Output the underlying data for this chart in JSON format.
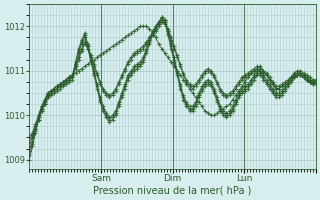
{
  "bg_color": "#d8eeee",
  "grid_color": "#b0cece",
  "line_color": "#2a5e2a",
  "marker_color": "#2a5e2a",
  "ylabel": "Pression niveau de la mer( hPa )",
  "yticks": [
    1009,
    1010,
    1011,
    1012
  ],
  "ylim": [
    1008.8,
    1012.5
  ],
  "xlim": [
    0,
    96
  ],
  "xtick_positions": [
    24,
    48,
    72,
    96
  ],
  "xtick_labels": [
    "Sam",
    "Dim",
    "Lun",
    ""
  ],
  "series": [
    [
      1009.3,
      1009.5,
      1009.7,
      1009.9,
      1010.1,
      1010.25,
      1010.4,
      1010.5,
      1010.6,
      1010.65,
      1010.7,
      1010.75,
      1010.8,
      1010.85,
      1010.9,
      1010.95,
      1011.0,
      1011.05,
      1011.1,
      1011.15,
      1011.2,
      1011.25,
      1011.3,
      1011.35,
      1011.4,
      1011.45,
      1011.5,
      1011.55,
      1011.6,
      1011.65,
      1011.7,
      1011.75,
      1011.8,
      1011.85,
      1011.9,
      1011.95,
      1012.0,
      1012.0,
      1012.0,
      1011.95,
      1011.85,
      1011.75,
      1011.6,
      1011.5,
      1011.4,
      1011.3,
      1011.2,
      1011.1,
      1011.0,
      1010.9,
      1010.8,
      1010.7,
      1010.6,
      1010.5,
      1010.4,
      1010.3,
      1010.2,
      1010.1,
      1010.05,
      1010.0,
      1010.0,
      1010.05,
      1010.1,
      1010.15,
      1010.2,
      1010.25,
      1010.35,
      1010.45,
      1010.55,
      1010.65,
      1010.75,
      1010.85,
      1010.95,
      1011.0,
      1011.05,
      1011.1,
      1011.0,
      1010.9,
      1010.8,
      1010.7,
      1010.6,
      1010.6,
      1010.65,
      1010.7,
      1010.75,
      1010.8,
      1010.85,
      1010.9,
      1010.9,
      1010.85,
      1010.8,
      1010.75,
      1010.7,
      1010.7
    ],
    [
      1009.2,
      1009.4,
      1009.7,
      1010.0,
      1010.2,
      1010.35,
      1010.5,
      1010.55,
      1010.6,
      1010.65,
      1010.7,
      1010.75,
      1010.8,
      1010.85,
      1010.9,
      1011.2,
      1011.5,
      1011.7,
      1011.85,
      1011.6,
      1011.3,
      1011.0,
      1010.7,
      1010.4,
      1010.2,
      1010.05,
      1009.95,
      1010.0,
      1010.1,
      1010.3,
      1010.5,
      1010.7,
      1010.9,
      1011.0,
      1011.1,
      1011.15,
      1011.2,
      1011.3,
      1011.5,
      1011.7,
      1011.9,
      1012.0,
      1012.1,
      1012.2,
      1012.15,
      1011.9,
      1011.6,
      1011.3,
      1011.0,
      1010.7,
      1010.45,
      1010.3,
      1010.2,
      1010.2,
      1010.3,
      1010.5,
      1010.65,
      1010.75,
      1010.8,
      1010.75,
      1010.6,
      1010.4,
      1010.2,
      1010.1,
      1010.05,
      1010.1,
      1010.2,
      1010.35,
      1010.5,
      1010.6,
      1010.65,
      1010.7,
      1010.8,
      1010.9,
      1011.0,
      1011.0,
      1010.9,
      1010.8,
      1010.7,
      1010.6,
      1010.5,
      1010.5,
      1010.55,
      1010.65,
      1010.75,
      1010.85,
      1010.95,
      1011.0,
      1011.0,
      1010.95,
      1010.9,
      1010.85,
      1010.8,
      1010.8
    ],
    [
      1009.1,
      1009.35,
      1009.65,
      1009.95,
      1010.15,
      1010.3,
      1010.45,
      1010.5,
      1010.55,
      1010.6,
      1010.65,
      1010.7,
      1010.75,
      1010.8,
      1010.85,
      1011.15,
      1011.45,
      1011.65,
      1011.8,
      1011.55,
      1011.25,
      1010.95,
      1010.65,
      1010.35,
      1010.15,
      1010.0,
      1009.9,
      1009.95,
      1010.05,
      1010.25,
      1010.45,
      1010.65,
      1010.85,
      1010.95,
      1011.05,
      1011.1,
      1011.15,
      1011.25,
      1011.45,
      1011.65,
      1011.85,
      1012.0,
      1012.1,
      1012.2,
      1012.15,
      1011.85,
      1011.55,
      1011.25,
      1010.95,
      1010.65,
      1010.4,
      1010.25,
      1010.15,
      1010.15,
      1010.25,
      1010.45,
      1010.6,
      1010.7,
      1010.75,
      1010.7,
      1010.55,
      1010.35,
      1010.15,
      1010.05,
      1010.0,
      1010.05,
      1010.15,
      1010.3,
      1010.45,
      1010.55,
      1010.6,
      1010.65,
      1010.75,
      1010.85,
      1010.95,
      1010.95,
      1010.85,
      1010.75,
      1010.65,
      1010.55,
      1010.45,
      1010.45,
      1010.5,
      1010.6,
      1010.7,
      1010.8,
      1010.9,
      1010.95,
      1010.95,
      1010.9,
      1010.85,
      1010.8,
      1010.75,
      1010.75
    ],
    [
      1009.0,
      1009.3,
      1009.6,
      1009.9,
      1010.1,
      1010.25,
      1010.4,
      1010.45,
      1010.5,
      1010.55,
      1010.6,
      1010.65,
      1010.7,
      1010.75,
      1010.8,
      1011.1,
      1011.4,
      1011.6,
      1011.75,
      1011.5,
      1011.2,
      1010.9,
      1010.6,
      1010.3,
      1010.1,
      1009.95,
      1009.85,
      1009.9,
      1010.0,
      1010.2,
      1010.4,
      1010.6,
      1010.8,
      1010.9,
      1011.0,
      1011.05,
      1011.1,
      1011.2,
      1011.4,
      1011.6,
      1011.8,
      1011.95,
      1012.05,
      1012.15,
      1012.1,
      1011.8,
      1011.5,
      1011.2,
      1010.9,
      1010.6,
      1010.35,
      1010.2,
      1010.1,
      1010.1,
      1010.2,
      1010.4,
      1010.55,
      1010.65,
      1010.7,
      1010.65,
      1010.5,
      1010.3,
      1010.1,
      1010.0,
      1009.95,
      1010.0,
      1010.1,
      1010.25,
      1010.4,
      1010.5,
      1010.55,
      1010.6,
      1010.7,
      1010.8,
      1010.9,
      1010.9,
      1010.8,
      1010.7,
      1010.6,
      1010.5,
      1010.4,
      1010.4,
      1010.45,
      1010.55,
      1010.65,
      1010.75,
      1010.85,
      1010.9,
      1010.9,
      1010.85,
      1010.8,
      1010.75,
      1010.7,
      1010.7
    ],
    [
      1009.5,
      1009.6,
      1009.8,
      1010.0,
      1010.2,
      1010.35,
      1010.5,
      1010.55,
      1010.6,
      1010.65,
      1010.7,
      1010.75,
      1010.8,
      1010.85,
      1010.9,
      1011.1,
      1011.3,
      1011.5,
      1011.65,
      1011.55,
      1011.35,
      1011.15,
      1010.95,
      1010.75,
      1010.6,
      1010.5,
      1010.45,
      1010.5,
      1010.6,
      1010.75,
      1010.9,
      1011.05,
      1011.2,
      1011.3,
      1011.4,
      1011.45,
      1011.5,
      1011.55,
      1011.65,
      1011.75,
      1011.85,
      1011.95,
      1012.05,
      1012.15,
      1012.1,
      1011.95,
      1011.75,
      1011.55,
      1011.35,
      1011.15,
      1010.95,
      1010.8,
      1010.7,
      1010.65,
      1010.7,
      1010.8,
      1010.9,
      1011.0,
      1011.05,
      1011.0,
      1010.9,
      1010.75,
      1010.6,
      1010.5,
      1010.45,
      1010.5,
      1010.55,
      1010.65,
      1010.75,
      1010.85,
      1010.9,
      1010.95,
      1011.0,
      1011.05,
      1011.1,
      1011.05,
      1011.0,
      1010.95,
      1010.85,
      1010.75,
      1010.65,
      1010.65,
      1010.7,
      1010.75,
      1010.8,
      1010.85,
      1010.9,
      1010.95,
      1010.95,
      1010.9,
      1010.85,
      1010.8,
      1010.75,
      1010.75
    ],
    [
      1009.4,
      1009.55,
      1009.75,
      1009.95,
      1010.15,
      1010.3,
      1010.45,
      1010.5,
      1010.55,
      1010.6,
      1010.65,
      1010.7,
      1010.75,
      1010.8,
      1010.85,
      1011.05,
      1011.25,
      1011.45,
      1011.6,
      1011.5,
      1011.3,
      1011.1,
      1010.9,
      1010.7,
      1010.55,
      1010.45,
      1010.4,
      1010.45,
      1010.55,
      1010.7,
      1010.85,
      1011.0,
      1011.15,
      1011.25,
      1011.35,
      1011.4,
      1011.45,
      1011.5,
      1011.6,
      1011.7,
      1011.8,
      1011.9,
      1012.0,
      1012.1,
      1012.05,
      1011.9,
      1011.7,
      1011.5,
      1011.3,
      1011.1,
      1010.9,
      1010.75,
      1010.65,
      1010.6,
      1010.65,
      1010.75,
      1010.85,
      1010.95,
      1011.0,
      1010.95,
      1010.85,
      1010.7,
      1010.55,
      1010.45,
      1010.4,
      1010.45,
      1010.5,
      1010.6,
      1010.7,
      1010.8,
      1010.85,
      1010.9,
      1010.95,
      1011.0,
      1011.05,
      1011.0,
      1010.95,
      1010.9,
      1010.8,
      1010.7,
      1010.6,
      1010.6,
      1010.65,
      1010.7,
      1010.75,
      1010.8,
      1010.85,
      1010.9,
      1010.9,
      1010.85,
      1010.8,
      1010.75,
      1010.7,
      1010.7
    ]
  ]
}
